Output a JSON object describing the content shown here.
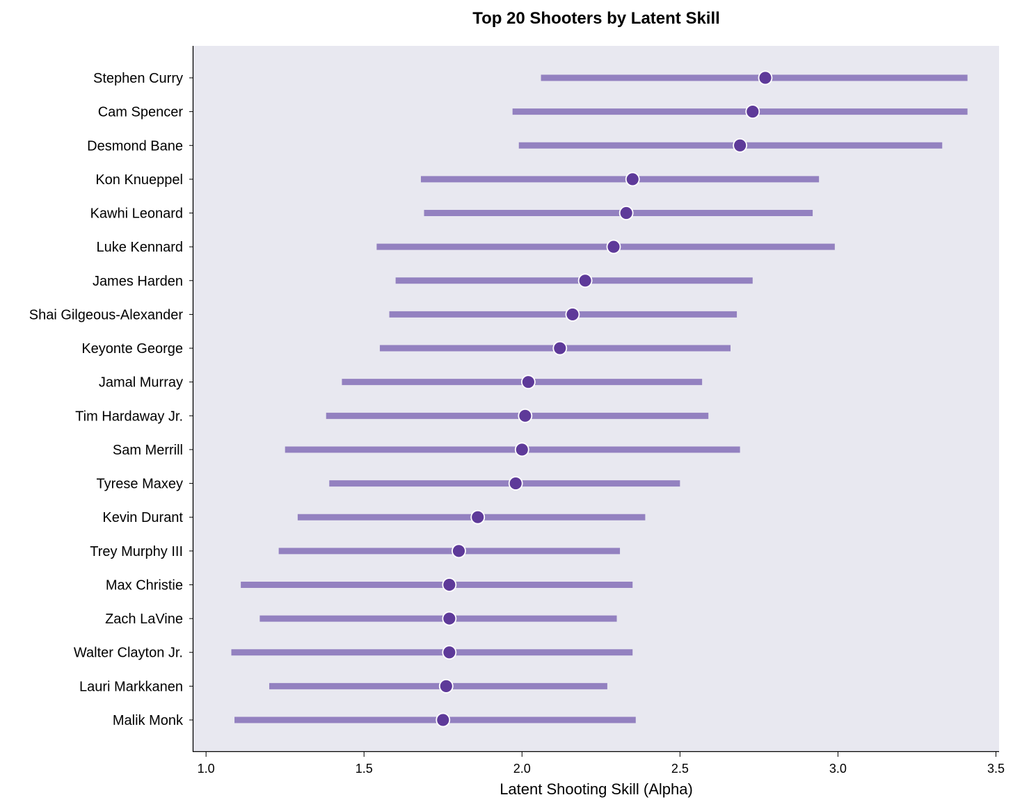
{
  "chart_data": {
    "type": "scatter",
    "title": "Top 20 Shooters by Latent Skill",
    "xlabel": "Latent Shooting Skill (Alpha)",
    "ylabel": "",
    "xlim": [
      0.96,
      3.51
    ],
    "xticks": [
      {
        "value": 1.0,
        "label": "1.0"
      },
      {
        "value": 1.5,
        "label": "1.5"
      },
      {
        "value": 2.0,
        "label": "2.0"
      },
      {
        "value": 2.5,
        "label": "2.5"
      },
      {
        "value": 3.0,
        "label": "3.0"
      },
      {
        "value": 3.5,
        "label": "3.5"
      }
    ],
    "grid": false,
    "colors": {
      "background": "#e8e8f0",
      "interval": "#9381c0",
      "point": "#5e3a99",
      "point_edge": "#ffffff"
    },
    "players": [
      {
        "name": "Stephen Curry",
        "alpha": 2.77,
        "low": 2.06,
        "high": 3.41
      },
      {
        "name": "Cam Spencer",
        "alpha": 2.73,
        "low": 1.97,
        "high": 3.41
      },
      {
        "name": "Desmond Bane",
        "alpha": 2.69,
        "low": 1.99,
        "high": 3.33
      },
      {
        "name": "Kon Knueppel",
        "alpha": 2.35,
        "low": 1.68,
        "high": 2.94
      },
      {
        "name": "Kawhi Leonard",
        "alpha": 2.33,
        "low": 1.69,
        "high": 2.92
      },
      {
        "name": "Luke Kennard",
        "alpha": 2.29,
        "low": 1.54,
        "high": 2.99
      },
      {
        "name": "James Harden",
        "alpha": 2.2,
        "low": 1.6,
        "high": 2.73
      },
      {
        "name": "Shai Gilgeous-Alexander",
        "alpha": 2.16,
        "low": 1.58,
        "high": 2.68
      },
      {
        "name": "Keyonte George",
        "alpha": 2.12,
        "low": 1.55,
        "high": 2.66
      },
      {
        "name": "Jamal Murray",
        "alpha": 2.02,
        "low": 1.43,
        "high": 2.57
      },
      {
        "name": "Tim Hardaway Jr.",
        "alpha": 2.01,
        "low": 1.38,
        "high": 2.59
      },
      {
        "name": "Sam Merrill",
        "alpha": 2.0,
        "low": 1.25,
        "high": 2.69
      },
      {
        "name": "Tyrese Maxey",
        "alpha": 1.98,
        "low": 1.39,
        "high": 2.5
      },
      {
        "name": "Kevin Durant",
        "alpha": 1.86,
        "low": 1.29,
        "high": 2.39
      },
      {
        "name": "Trey Murphy III",
        "alpha": 1.8,
        "low": 1.23,
        "high": 2.31
      },
      {
        "name": "Max Christie",
        "alpha": 1.77,
        "low": 1.11,
        "high": 2.35
      },
      {
        "name": "Zach LaVine",
        "alpha": 1.77,
        "low": 1.17,
        "high": 2.3
      },
      {
        "name": "Walter Clayton Jr.",
        "alpha": 1.77,
        "low": 1.08,
        "high": 2.35
      },
      {
        "name": "Lauri Markkanen",
        "alpha": 1.76,
        "low": 1.2,
        "high": 2.27
      },
      {
        "name": "Malik Monk",
        "alpha": 1.75,
        "low": 1.09,
        "high": 2.36
      }
    ]
  }
}
